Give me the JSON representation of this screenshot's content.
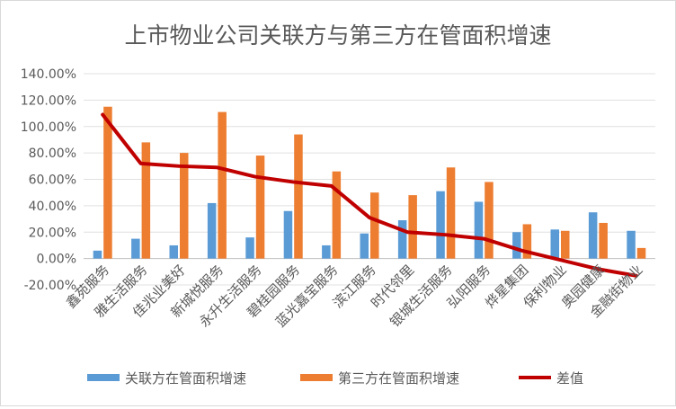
{
  "chart_data": {
    "type": "bar",
    "title": "上市物业公司关联方与第三方在管面积增速",
    "categories": [
      "鑫苑服务",
      "雅生活服务",
      "佳兆业美好",
      "新城悦服务",
      "永升生活服务",
      "碧桂园服务",
      "蓝光嘉宝服务",
      "滨江服务",
      "时代邻里",
      "银城生活服务",
      "弘阳服务",
      "烨星集团",
      "保利物业",
      "奥园健康",
      "金融街物业"
    ],
    "series": [
      {
        "name": "关联方在管面积增速",
        "kind": "bar",
        "color": "#5b9bd5",
        "values": [
          6,
          15,
          10,
          42,
          16,
          36,
          10,
          19,
          29,
          51,
          43,
          20,
          22,
          35,
          21
        ]
      },
      {
        "name": "第三方在管面积增速",
        "kind": "bar",
        "color": "#ed7d31",
        "values": [
          115,
          88,
          80,
          111,
          78,
          94,
          66,
          50,
          48,
          69,
          58,
          26,
          21,
          27,
          8
        ]
      },
      {
        "name": "差值",
        "kind": "line",
        "color": "#c00000",
        "values": [
          109,
          72,
          70,
          69,
          62,
          58,
          55,
          31,
          20,
          18,
          15,
          6,
          -1,
          -8,
          -13
        ]
      }
    ],
    "y_ticks": [
      "140.00%",
      "120.00%",
      "100.00%",
      "80.00%",
      "60.00%",
      "40.00%",
      "20.00%",
      "0.00%",
      "-20.00%"
    ],
    "ylim": [
      -20,
      140
    ],
    "y_unit": "%",
    "grid": true,
    "legend_position": "bottom"
  }
}
